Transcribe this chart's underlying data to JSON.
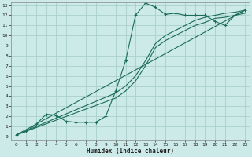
{
  "xlabel": "Humidex (Indice chaleur)",
  "bg_color": "#cceae8",
  "grid_color": "#aacfcc",
  "line_color": "#1a6b5a",
  "xlim": [
    -0.5,
    23.5
  ],
  "ylim": [
    -0.3,
    13.3
  ],
  "xticks": [
    0,
    1,
    2,
    3,
    4,
    5,
    6,
    7,
    8,
    9,
    10,
    11,
    12,
    13,
    14,
    15,
    16,
    17,
    18,
    19,
    20,
    21,
    22,
    23
  ],
  "yticks": [
    0,
    1,
    2,
    3,
    4,
    5,
    6,
    7,
    8,
    9,
    10,
    11,
    12,
    13
  ],
  "line1_x": [
    0,
    1,
    2,
    3,
    4,
    5,
    6,
    7,
    8,
    9,
    10,
    11,
    12,
    13,
    14,
    15,
    16,
    17,
    18,
    19,
    20,
    21,
    22,
    23
  ],
  "line1_y": [
    0.15,
    0.5,
    1.2,
    2.2,
    2.1,
    1.5,
    1.4,
    1.4,
    1.4,
    2.0,
    4.5,
    7.5,
    12.0,
    13.2,
    12.8,
    12.1,
    12.2,
    12.0,
    12.0,
    12.0,
    11.4,
    11.0,
    12.0,
    12.5
  ],
  "line2_x": [
    0,
    10,
    11,
    12,
    13,
    14,
    15,
    16,
    17,
    18,
    19,
    20,
    21,
    22,
    23
  ],
  "line2_y": [
    0.15,
    4.3,
    5.0,
    6.0,
    7.5,
    9.2,
    10.0,
    10.5,
    11.0,
    11.5,
    11.8,
    12.0,
    12.2,
    12.3,
    12.5
  ],
  "line3_x": [
    0,
    10,
    11,
    12,
    13,
    14,
    15,
    16,
    17,
    18,
    19,
    20,
    21,
    22,
    23
  ],
  "line3_y": [
    0.15,
    3.8,
    4.5,
    5.5,
    7.0,
    8.8,
    9.5,
    10.0,
    10.5,
    11.0,
    11.3,
    11.7,
    11.8,
    12.0,
    12.2
  ],
  "ref_line_x": [
    0,
    23
  ],
  "ref_line_y": [
    0.15,
    12.5
  ]
}
